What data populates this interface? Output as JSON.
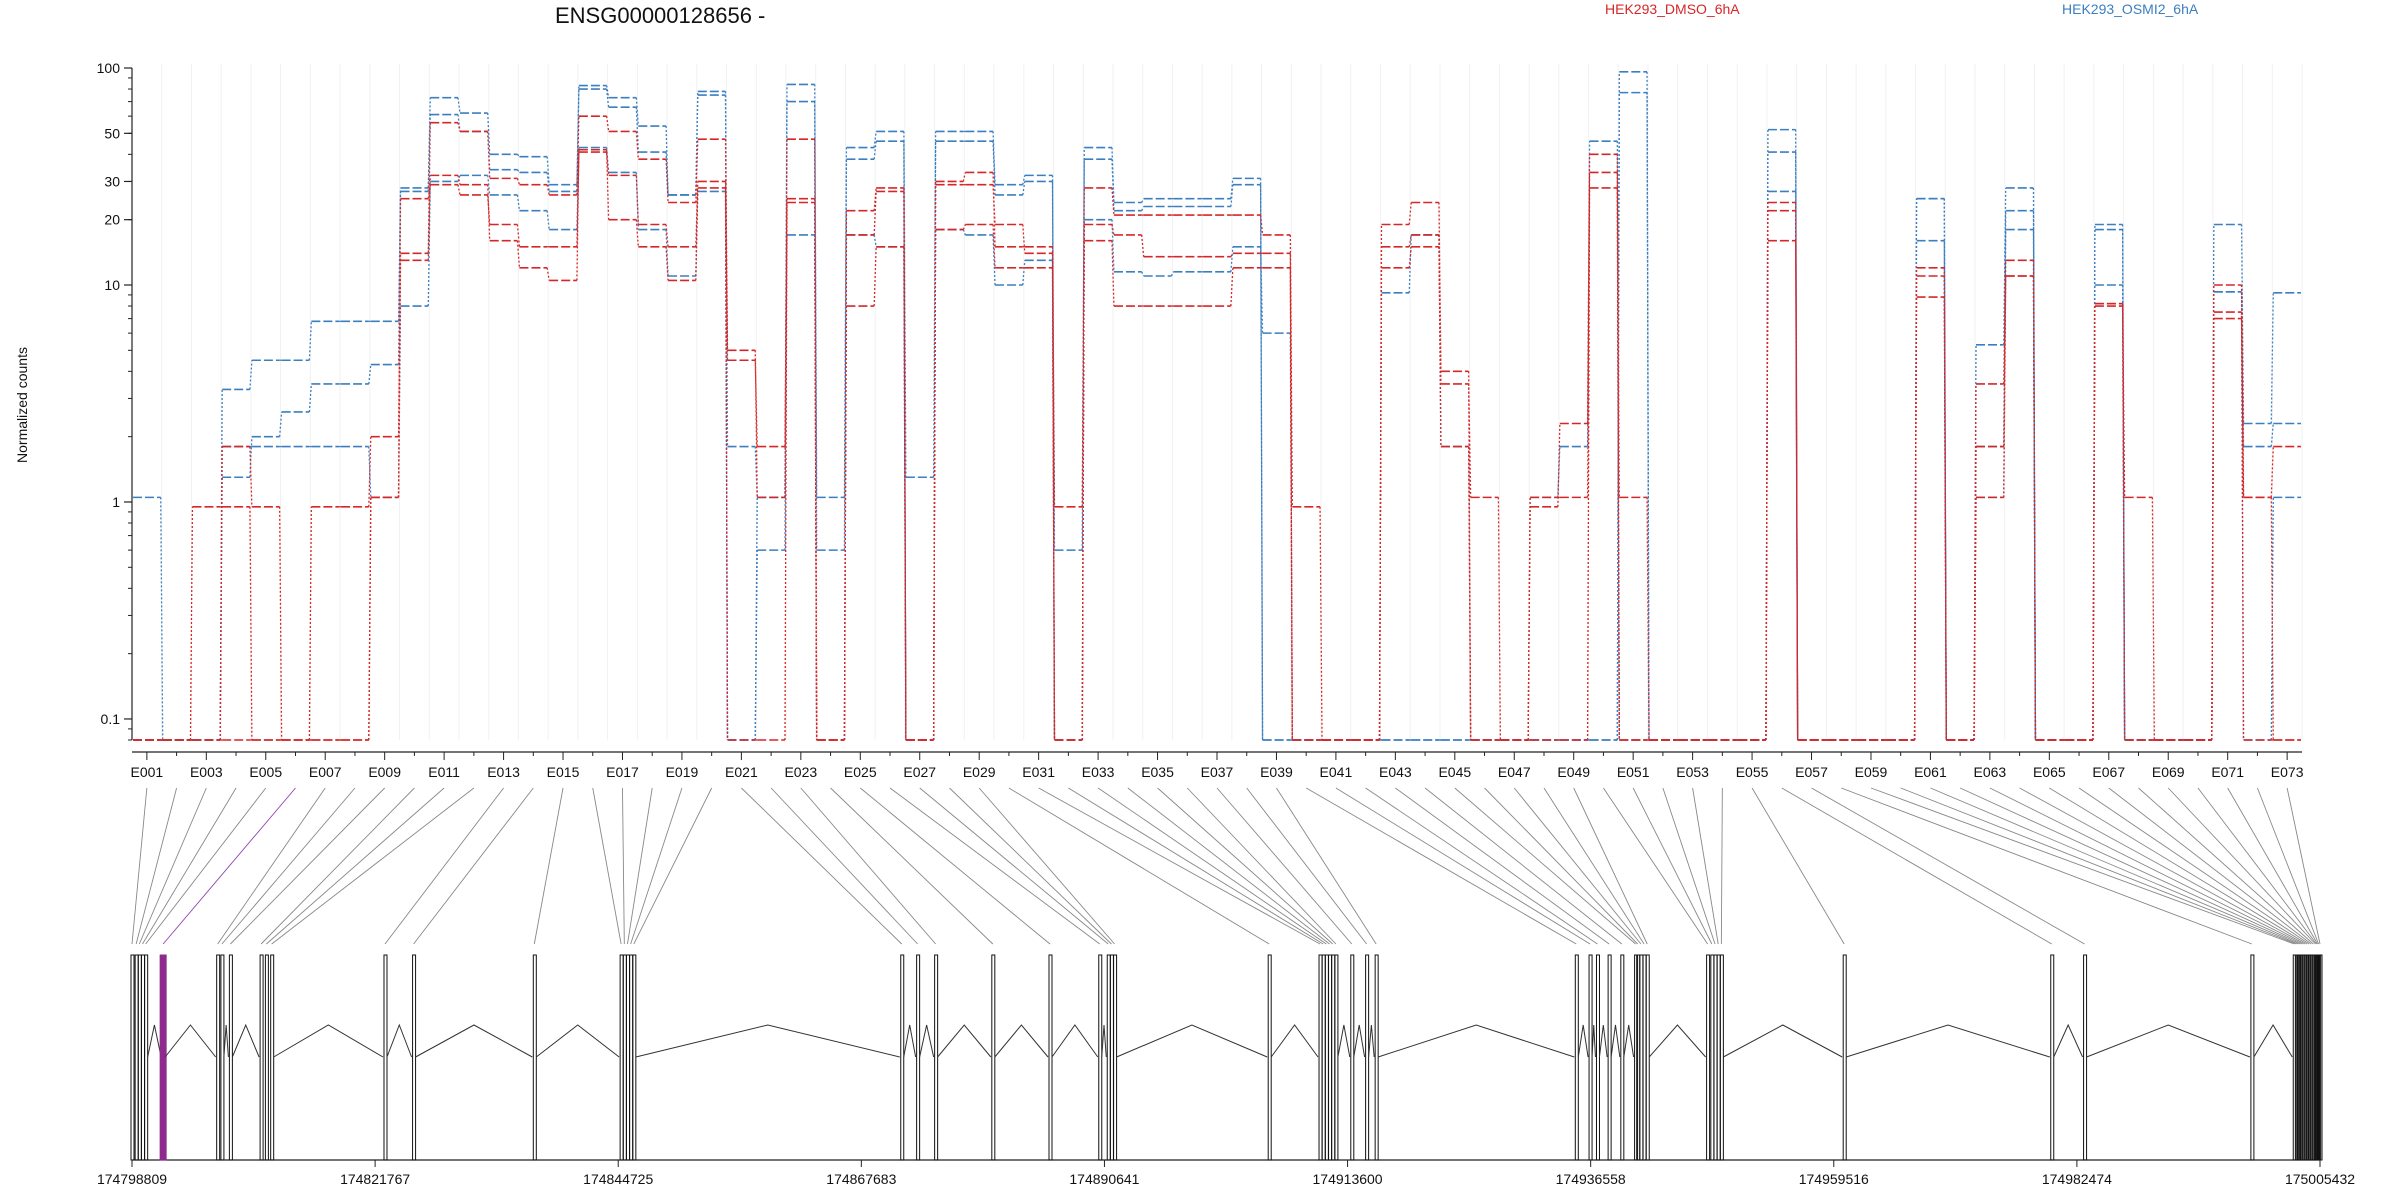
{
  "chart_data": {
    "type": "line",
    "title": "ENSG00000128656 -",
    "ylabel": "Normalized counts",
    "y_scale": "log",
    "y_ticks": [
      0.1,
      1,
      10,
      20,
      30,
      50,
      100
    ],
    "ylim": [
      0.08,
      100
    ],
    "legend": [
      {
        "name": "HEK293_DMSO_6hA",
        "color": "#d62728"
      },
      {
        "name": "HEK293_OSMI2_6hA",
        "color": "#3b7fc0"
      }
    ],
    "legend_placement": "top-right",
    "exons": [
      "E001",
      "E002",
      "E003",
      "E004",
      "E005",
      "E006",
      "E007",
      "E008",
      "E009",
      "E010",
      "E011",
      "E012",
      "E013",
      "E014",
      "E015",
      "E016",
      "E017",
      "E018",
      "E019",
      "E020",
      "E021",
      "E022",
      "E023",
      "E024",
      "E025",
      "E026",
      "E027",
      "E028",
      "E029",
      "E030",
      "E031",
      "E032",
      "E033",
      "E034",
      "E035",
      "E036",
      "E037",
      "E038",
      "E039",
      "E040",
      "E041",
      "E042",
      "E043",
      "E044",
      "E045",
      "E046",
      "E047",
      "E048",
      "E049",
      "E050",
      "E051",
      "E052",
      "E053",
      "E054",
      "E055",
      "E056",
      "E057",
      "E058",
      "E059",
      "E060",
      "E061",
      "E062",
      "E063",
      "E064",
      "E065",
      "E066",
      "E067",
      "E068",
      "E069",
      "E070",
      "E071",
      "E072",
      "E073"
    ],
    "exon_tick_labels": [
      "E001",
      "E003",
      "E005",
      "E007",
      "E009",
      "E011",
      "E013",
      "E015",
      "E017",
      "E019",
      "E021",
      "E023",
      "E025",
      "E027",
      "E029",
      "E031",
      "E033",
      "E035",
      "E037",
      "E039",
      "E041",
      "E043",
      "E045",
      "E047",
      "E049",
      "E051",
      "E053",
      "E055",
      "E057",
      "E059",
      "E061",
      "E063",
      "E065",
      "E067",
      "E069",
      "E071",
      "E073"
    ],
    "series": [
      {
        "name": "HEK293_OSMI2_6hA",
        "color": "#3b7fc0",
        "style": "dashed",
        "values": [
          1.05,
          0.08,
          0.08,
          3.3,
          4.5,
          4.5,
          6.8,
          6.8,
          6.8,
          27,
          73,
          62,
          40,
          39,
          29,
          83,
          73,
          54,
          26,
          75,
          1.8,
          1.05,
          84,
          1.05,
          43,
          51,
          1.3,
          51,
          51,
          29,
          32,
          0.08,
          43,
          24,
          25,
          25,
          25,
          31,
          0.08,
          0.08,
          0.08,
          0.08,
          0.08,
          0.08,
          0.08,
          0.08,
          0.08,
          0.08,
          0.08,
          0.08,
          96,
          0.08,
          0.08,
          0.08,
          0.08,
          52,
          0.08,
          0.08,
          0.08,
          0.08,
          25,
          0.08,
          5.3,
          28,
          0.08,
          0.08,
          19,
          0.08,
          0.08,
          0.08,
          19,
          2.3,
          9.2
        ]
      },
      {
        "name": "HEK293_OSMI2_6hA",
        "color": "#3b7fc0",
        "style": "dashed",
        "values": [
          0.08,
          0.08,
          0.08,
          1.3,
          2.0,
          2.6,
          3.5,
          3.5,
          4.3,
          28,
          61,
          51,
          34,
          33,
          27,
          80,
          66,
          41,
          26,
          78,
          0.08,
          0.6,
          70,
          0.6,
          38,
          46,
          0.08,
          46,
          46,
          26,
          30,
          0.6,
          38,
          22,
          23,
          23,
          23,
          29,
          0.08,
          0.08,
          0.08,
          0.08,
          0.08,
          0.08,
          0.08,
          0.08,
          0.08,
          0.08,
          0.08,
          0.08,
          77,
          0.08,
          0.08,
          0.08,
          0.08,
          41,
          0.08,
          0.08,
          0.08,
          0.08,
          25,
          0.08,
          1.8,
          22,
          0.08,
          0.08,
          18,
          0.08,
          0.08,
          0.08,
          9.3,
          1.8,
          2.3
        ]
      },
      {
        "name": "HEK293_OSMI2_6hA",
        "color": "#3b7fc0",
        "style": "dashed",
        "values": [
          0.08,
          0.08,
          0.08,
          1.8,
          1.8,
          1.8,
          1.8,
          1.8,
          1.05,
          8.0,
          30,
          32,
          26,
          22,
          18,
          43,
          33,
          18,
          11,
          27,
          0.08,
          1.05,
          17,
          0.08,
          17,
          15,
          0.08,
          18,
          17,
          10,
          13,
          0.08,
          20,
          11.5,
          11,
          11.5,
          11.5,
          15,
          6.0,
          0.08,
          0.08,
          0.08,
          9.2,
          17,
          1.8,
          0.08,
          0.08,
          1.05,
          1.8,
          46,
          0.08,
          0.08,
          0.08,
          0.08,
          0.08,
          27,
          0.08,
          0.08,
          0.08,
          0.08,
          16,
          0.08,
          1.05,
          18,
          0.08,
          0.08,
          10,
          0.08,
          0.08,
          0.08,
          9.3,
          0.08,
          1.05
        ]
      },
      {
        "name": "HEK293_DMSO_6hA",
        "color": "#d62728",
        "style": "dashed",
        "values": [
          0.08,
          0.08,
          0.95,
          0.95,
          0.08,
          0.08,
          0.95,
          0.95,
          2.0,
          14,
          56,
          51,
          31,
          29,
          26,
          60,
          51,
          38,
          24,
          47,
          5.0,
          1.05,
          47,
          0.08,
          22,
          28,
          0.08,
          30,
          33,
          15,
          15,
          0.95,
          28,
          21,
          21,
          21,
          21,
          21,
          17,
          0.95,
          0.08,
          0.08,
          19,
          24,
          4.0,
          0.08,
          0.08,
          0.95,
          2.3,
          40,
          1.05,
          0.08,
          0.08,
          0.08,
          0.08,
          24,
          0.08,
          0.08,
          0.08,
          0.08,
          12,
          0.08,
          3.5,
          13,
          0.08,
          0.08,
          8.0,
          1.05,
          0.08,
          0.08,
          10,
          1.05,
          1.8
        ]
      },
      {
        "name": "HEK293_DMSO_6hA",
        "color": "#d62728",
        "style": "dashed",
        "values": [
          0.08,
          0.08,
          0.08,
          1.8,
          0.95,
          0.08,
          0.08,
          0.08,
          1.05,
          25,
          29,
          26,
          19,
          15,
          15,
          41,
          32,
          19,
          15,
          30,
          4.5,
          1.8,
          24,
          0.08,
          17,
          27,
          0.08,
          29,
          29,
          19,
          14,
          0.08,
          19,
          17,
          13.5,
          13.5,
          13.5,
          14,
          14,
          0.08,
          0.08,
          0.08,
          12,
          15,
          3.5,
          1.05,
          0.08,
          1.05,
          1.05,
          33,
          0.08,
          0.08,
          0.08,
          0.08,
          0.08,
          22,
          0.08,
          0.08,
          0.08,
          0.08,
          11,
          0.08,
          1.8,
          11,
          0.08,
          0.08,
          8.2,
          0.08,
          0.08,
          0.08,
          7.5,
          0.08,
          0.08
        ]
      },
      {
        "name": "HEK293_DMSO_6hA",
        "color": "#d62728",
        "style": "dashed",
        "values": [
          0.08,
          0.08,
          0.08,
          0.08,
          0.08,
          0.08,
          0.08,
          0.08,
          1.05,
          13,
          32,
          29,
          16,
          12,
          10.5,
          42,
          20,
          15,
          10.5,
          28,
          0.08,
          0.08,
          25,
          0.08,
          8.0,
          15,
          0.08,
          18,
          19,
          12,
          12,
          0.08,
          16,
          8.0,
          8.0,
          8.0,
          8.0,
          12,
          12,
          0.08,
          0.08,
          0.08,
          15,
          17,
          1.8,
          0.08,
          0.08,
          0.08,
          0.08,
          28,
          0.08,
          0.08,
          0.08,
          0.08,
          0.08,
          16,
          0.08,
          0.08,
          0.08,
          0.08,
          8.8,
          0.08,
          1.05,
          11,
          0.08,
          0.08,
          8.2,
          0.08,
          0.08,
          0.08,
          7.0,
          1.05,
          0.08
        ]
      }
    ],
    "highlighted_exon": "E006",
    "genomic_coordinate_ticks": [
      "174798809",
      "174821767",
      "174844725",
      "174867683",
      "174890641",
      "174913600",
      "174936558",
      "174959516",
      "174982474",
      "175005432"
    ],
    "genomic_range": [
      174798809,
      175005432
    ],
    "exon_genomic_positions": [
      174798809,
      174799200,
      174799500,
      174799800,
      174800100,
      174801750,
      174806900,
      174807300,
      174808100,
      174811000,
      174811500,
      174812000,
      174822700,
      174825400,
      174836800,
      174845000,
      174845300,
      174845600,
      174845900,
      174846200,
      174871500,
      174873000,
      174874700,
      174880100,
      174885500,
      174890200,
      174891000,
      174891300,
      174891600,
      174906200,
      174911000,
      174911300,
      174911600,
      174911900,
      174912200,
      174912500,
      174914000,
      174915400,
      174916300,
      174935200,
      174936500,
      174937200,
      174938300,
      174939500,
      174940800,
      174941000,
      174941300,
      174941600,
      174941900,
      174947600,
      174948000,
      174948300,
      174948600,
      174948900,
      174960500,
      174980100,
      174983200,
      174999000,
      175003000,
      175003200,
      175003400,
      175003600,
      175003800,
      175004000,
      175004200,
      175004400,
      175004600,
      175004800,
      175005000,
      175005100,
      175005200,
      175005300,
      175005432
    ]
  }
}
